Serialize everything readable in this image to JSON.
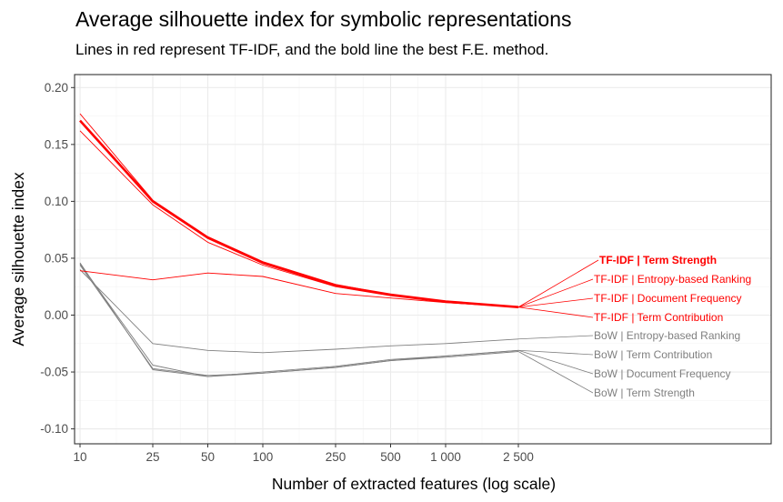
{
  "chart_data": {
    "type": "line",
    "title": "Average silhouette index for symbolic representations",
    "subtitle": "Lines in red represent TF-IDF, and the bold line the best F.E. method.",
    "xlabel": "Number of extracted features (log scale)",
    "ylabel": "Average silhouette index",
    "x_scale": "log",
    "x": [
      10,
      25,
      50,
      100,
      250,
      500,
      1000,
      2500
    ],
    "x_tick_labels": [
      "10",
      "25",
      "50",
      "100",
      "250",
      "500",
      "1 000",
      "2 500"
    ],
    "y_ticks": [
      -0.1,
      -0.05,
      0.0,
      0.05,
      0.1,
      0.15,
      0.2
    ],
    "y_tick_labels": [
      "-0.10",
      "-0.05",
      "0.00",
      "0.05",
      "0.10",
      "0.15",
      "0.20"
    ],
    "ylim": [
      -0.11,
      0.205
    ],
    "grid": true,
    "legend": "direct labels at right",
    "colors": {
      "tfidf": "#ff0000",
      "bow": "#7f7f7f",
      "panel_border": "#333333",
      "grid": "#ebebeb"
    },
    "series": [
      {
        "name": "TF-IDF | Term Strength",
        "family": "tfidf",
        "bold": true,
        "values": [
          0.171,
          0.1,
          0.068,
          0.046,
          0.026,
          0.018,
          0.012,
          0.007
        ]
      },
      {
        "name": "TF-IDF | Entropy-based Ranking",
        "family": "tfidf",
        "bold": false,
        "values": [
          0.177,
          0.101,
          0.069,
          0.047,
          0.027,
          0.018,
          0.012,
          0.007
        ]
      },
      {
        "name": "TF-IDF | Document Frequency",
        "family": "tfidf",
        "bold": false,
        "values": [
          0.162,
          0.097,
          0.064,
          0.044,
          0.025,
          0.017,
          0.011,
          0.007
        ]
      },
      {
        "name": "TF-IDF | Term Contribution",
        "family": "tfidf",
        "bold": false,
        "values": [
          0.039,
          0.031,
          0.037,
          0.034,
          0.019,
          0.015,
          0.011,
          0.007
        ]
      },
      {
        "name": "BoW | Entropy-based Ranking",
        "family": "bow",
        "bold": false,
        "values": [
          0.04,
          -0.025,
          -0.031,
          -0.033,
          -0.03,
          -0.027,
          -0.025,
          -0.021
        ]
      },
      {
        "name": "BoW | Term Contribution",
        "family": "bow",
        "bold": false,
        "values": [
          0.045,
          -0.044,
          -0.054,
          -0.05,
          -0.045,
          -0.039,
          -0.036,
          -0.031
        ]
      },
      {
        "name": "BoW | Document Frequency",
        "family": "bow",
        "bold": false,
        "values": [
          0.044,
          -0.047,
          -0.053,
          -0.051,
          -0.046,
          -0.04,
          -0.036,
          -0.031
        ]
      },
      {
        "name": "BoW | Term Strength",
        "family": "bow",
        "bold": false,
        "values": [
          0.046,
          -0.048,
          -0.054,
          -0.051,
          -0.046,
          -0.04,
          -0.037,
          -0.032
        ]
      }
    ]
  }
}
